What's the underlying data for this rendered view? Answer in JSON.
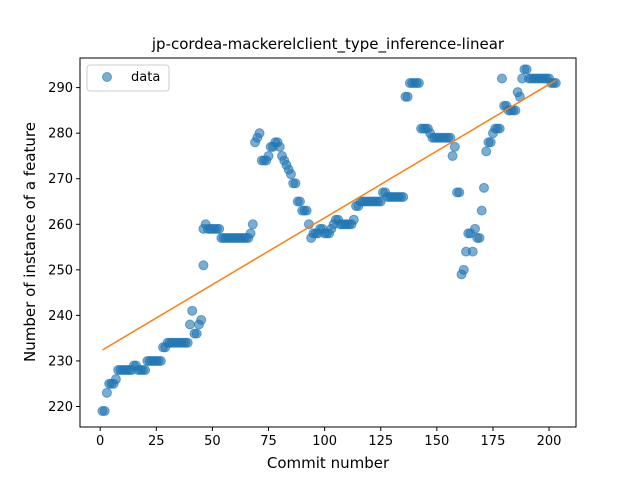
{
  "chart_data": {
    "type": "scatter",
    "title": "jp-cordea-mackerelclient_type_inference-linear",
    "xlabel": "Commit number",
    "ylabel": "Number of instance of a feature",
    "xlim": [
      -9,
      212
    ],
    "ylim": [
      215.5,
      296.5
    ],
    "xticks": [
      0,
      25,
      50,
      75,
      100,
      125,
      150,
      175,
      200
    ],
    "yticks": [
      220,
      230,
      240,
      250,
      260,
      270,
      280,
      290
    ],
    "grid": false,
    "legend": {
      "placement": "top-left",
      "entries": [
        "data"
      ]
    },
    "colors": {
      "points": "#1f77b4",
      "fit": "#ff7f0e"
    },
    "series": [
      {
        "name": "data",
        "kind": "scatter",
        "points": [
          [
            1,
            219
          ],
          [
            2,
            219
          ],
          [
            3,
            223
          ],
          [
            4,
            225
          ],
          [
            5,
            225
          ],
          [
            6,
            225
          ],
          [
            7,
            226
          ],
          [
            8,
            228
          ],
          [
            9,
            228
          ],
          [
            10,
            228
          ],
          [
            11,
            228
          ],
          [
            12,
            228
          ],
          [
            13,
            228
          ],
          [
            14,
            228
          ],
          [
            15,
            229
          ],
          [
            16,
            229
          ],
          [
            17,
            228
          ],
          [
            18,
            228
          ],
          [
            19,
            228
          ],
          [
            20,
            228
          ],
          [
            21,
            230
          ],
          [
            22,
            230
          ],
          [
            23,
            230
          ],
          [
            24,
            230
          ],
          [
            25,
            230
          ],
          [
            26,
            230
          ],
          [
            27,
            230
          ],
          [
            28,
            233
          ],
          [
            29,
            233
          ],
          [
            30,
            234
          ],
          [
            31,
            234
          ],
          [
            32,
            234
          ],
          [
            33,
            234
          ],
          [
            34,
            234
          ],
          [
            35,
            234
          ],
          [
            36,
            234
          ],
          [
            37,
            234
          ],
          [
            38,
            234
          ],
          [
            39,
            234
          ],
          [
            40,
            238
          ],
          [
            41,
            241
          ],
          [
            42,
            236
          ],
          [
            43,
            236
          ],
          [
            44,
            238
          ],
          [
            45,
            239
          ],
          [
            46,
            251
          ],
          [
            46,
            259
          ],
          [
            47,
            260
          ],
          [
            48,
            259
          ],
          [
            49,
            259
          ],
          [
            50,
            259
          ],
          [
            51,
            259
          ],
          [
            52,
            259
          ],
          [
            53,
            259
          ],
          [
            54,
            257
          ],
          [
            55,
            257
          ],
          [
            56,
            257
          ],
          [
            57,
            257
          ],
          [
            58,
            257
          ],
          [
            59,
            257
          ],
          [
            60,
            257
          ],
          [
            61,
            257
          ],
          [
            62,
            257
          ],
          [
            63,
            257
          ],
          [
            64,
            257
          ],
          [
            65,
            257
          ],
          [
            66,
            257
          ],
          [
            67,
            258
          ],
          [
            68,
            260
          ],
          [
            69,
            278
          ],
          [
            70,
            279
          ],
          [
            71,
            280
          ],
          [
            72,
            274
          ],
          [
            73,
            274
          ],
          [
            74,
            274
          ],
          [
            75,
            275
          ],
          [
            76,
            277
          ],
          [
            77,
            277
          ],
          [
            78,
            278
          ],
          [
            79,
            278
          ],
          [
            80,
            277
          ],
          [
            81,
            275
          ],
          [
            82,
            274
          ],
          [
            83,
            273
          ],
          [
            84,
            272
          ],
          [
            85,
            271
          ],
          [
            86,
            269
          ],
          [
            87,
            269
          ],
          [
            88,
            265
          ],
          [
            89,
            265
          ],
          [
            90,
            263
          ],
          [
            91,
            263
          ],
          [
            92,
            263
          ],
          [
            93,
            260
          ],
          [
            94,
            257
          ],
          [
            95,
            258
          ],
          [
            96,
            258
          ],
          [
            97,
            258
          ],
          [
            98,
            259
          ],
          [
            99,
            259
          ],
          [
            100,
            258
          ],
          [
            101,
            258
          ],
          [
            102,
            258
          ],
          [
            103,
            259
          ],
          [
            104,
            260
          ],
          [
            105,
            261
          ],
          [
            106,
            261
          ],
          [
            107,
            260
          ],
          [
            108,
            260
          ],
          [
            109,
            260
          ],
          [
            110,
            260
          ],
          [
            111,
            260
          ],
          [
            112,
            260
          ],
          [
            113,
            261
          ],
          [
            114,
            264
          ],
          [
            115,
            264
          ],
          [
            116,
            265
          ],
          [
            117,
            265
          ],
          [
            118,
            265
          ],
          [
            119,
            265
          ],
          [
            120,
            265
          ],
          [
            121,
            265
          ],
          [
            122,
            265
          ],
          [
            123,
            265
          ],
          [
            124,
            265
          ],
          [
            125,
            265
          ],
          [
            126,
            267
          ],
          [
            127,
            267
          ],
          [
            128,
            266
          ],
          [
            129,
            266
          ],
          [
            130,
            266
          ],
          [
            131,
            266
          ],
          [
            132,
            266
          ],
          [
            133,
            266
          ],
          [
            134,
            266
          ],
          [
            135,
            266
          ],
          [
            136,
            288
          ],
          [
            137,
            288
          ],
          [
            138,
            291
          ],
          [
            139,
            291
          ],
          [
            140,
            291
          ],
          [
            141,
            291
          ],
          [
            142,
            291
          ],
          [
            143,
            281
          ],
          [
            144,
            281
          ],
          [
            145,
            281
          ],
          [
            146,
            281
          ],
          [
            147,
            280
          ],
          [
            148,
            279
          ],
          [
            149,
            279
          ],
          [
            150,
            279
          ],
          [
            151,
            279
          ],
          [
            152,
            279
          ],
          [
            153,
            279
          ],
          [
            154,
            279
          ],
          [
            155,
            279
          ],
          [
            156,
            279
          ],
          [
            157,
            275
          ],
          [
            158,
            277
          ],
          [
            159,
            267
          ],
          [
            160,
            267
          ],
          [
            161,
            249
          ],
          [
            162,
            250
          ],
          [
            163,
            254
          ],
          [
            164,
            258
          ],
          [
            165,
            258
          ],
          [
            166,
            254
          ],
          [
            167,
            259
          ],
          [
            168,
            257
          ],
          [
            169,
            257
          ],
          [
            170,
            263
          ],
          [
            171,
            268
          ],
          [
            172,
            276
          ],
          [
            173,
            278
          ],
          [
            174,
            278
          ],
          [
            175,
            280
          ],
          [
            176,
            281
          ],
          [
            177,
            281
          ],
          [
            178,
            281
          ],
          [
            179,
            292
          ],
          [
            180,
            286
          ],
          [
            181,
            286
          ],
          [
            182,
            285
          ],
          [
            183,
            285
          ],
          [
            184,
            285
          ],
          [
            185,
            285
          ],
          [
            186,
            289
          ],
          [
            187,
            288
          ],
          [
            188,
            292
          ],
          [
            189,
            294
          ],
          [
            190,
            294
          ],
          [
            191,
            292
          ],
          [
            192,
            292
          ],
          [
            193,
            292
          ],
          [
            194,
            292
          ],
          [
            195,
            292
          ],
          [
            196,
            292
          ],
          [
            197,
            292
          ],
          [
            198,
            292
          ],
          [
            199,
            292
          ],
          [
            200,
            292
          ],
          [
            201,
            291
          ],
          [
            202,
            291
          ],
          [
            203,
            291
          ]
        ]
      },
      {
        "kind": "line",
        "points": [
          [
            1,
            232.4
          ],
          [
            203,
            291.6
          ]
        ]
      }
    ]
  }
}
